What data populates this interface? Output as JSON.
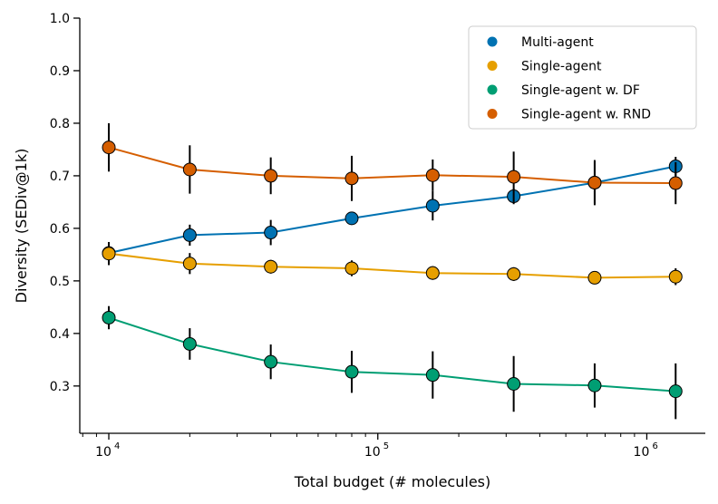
{
  "chart_data": {
    "type": "line",
    "title": "",
    "xlabel": "Total budget (# molecules)",
    "ylabel": "Diversity (SEDiv@1k)",
    "xscale": "log",
    "xlim": [
      7800,
      1650000
    ],
    "ylim": [
      0.21,
      1.0
    ],
    "x": [
      10000,
      20000,
      40000,
      80000,
      160000,
      320000,
      640000,
      1280000
    ],
    "x_tick_values": [
      10000,
      100000,
      1000000
    ],
    "x_tick_labels": [
      {
        "base": "10",
        "exp": "4"
      },
      {
        "base": "10",
        "exp": "5"
      },
      {
        "base": "10",
        "exp": "6"
      }
    ],
    "y_ticks": [
      0.3,
      0.4,
      0.5,
      0.6,
      0.7,
      0.8,
      0.9,
      1.0
    ],
    "y_tick_labels": [
      "0.3",
      "0.4",
      "0.5",
      "0.6",
      "0.7",
      "0.8",
      "0.9",
      "1.0"
    ],
    "legend_position": "top-right",
    "series": [
      {
        "name": "Multi-agent",
        "color": "#0072b2",
        "values": [
          0.553,
          0.587,
          0.592,
          0.619,
          0.643,
          0.661,
          0.687,
          0.718
        ],
        "errors": [
          0.018,
          0.02,
          0.024,
          0.012,
          0.028,
          0.015,
          0.04,
          0.018
        ]
      },
      {
        "name": "Single-agent",
        "color": "#e69f00",
        "values": [
          0.552,
          0.533,
          0.527,
          0.524,
          0.515,
          0.513,
          0.506,
          0.508
        ],
        "errors": [
          0.022,
          0.02,
          0.013,
          0.015,
          0.013,
          0.013,
          0.01,
          0.016
        ]
      },
      {
        "name": "Single-agent w. DF",
        "color": "#009e73",
        "values": [
          0.43,
          0.38,
          0.346,
          0.327,
          0.321,
          0.304,
          0.301,
          0.29
        ],
        "errors": [
          0.022,
          0.03,
          0.033,
          0.04,
          0.045,
          0.053,
          0.042,
          0.053
        ]
      },
      {
        "name": "Single-agent w. RND",
        "color": "#d55e00",
        "values": [
          0.754,
          0.712,
          0.7,
          0.695,
          0.701,
          0.698,
          0.687,
          0.686
        ],
        "errors": [
          0.046,
          0.046,
          0.035,
          0.043,
          0.03,
          0.048,
          0.043,
          0.04
        ]
      }
    ]
  }
}
